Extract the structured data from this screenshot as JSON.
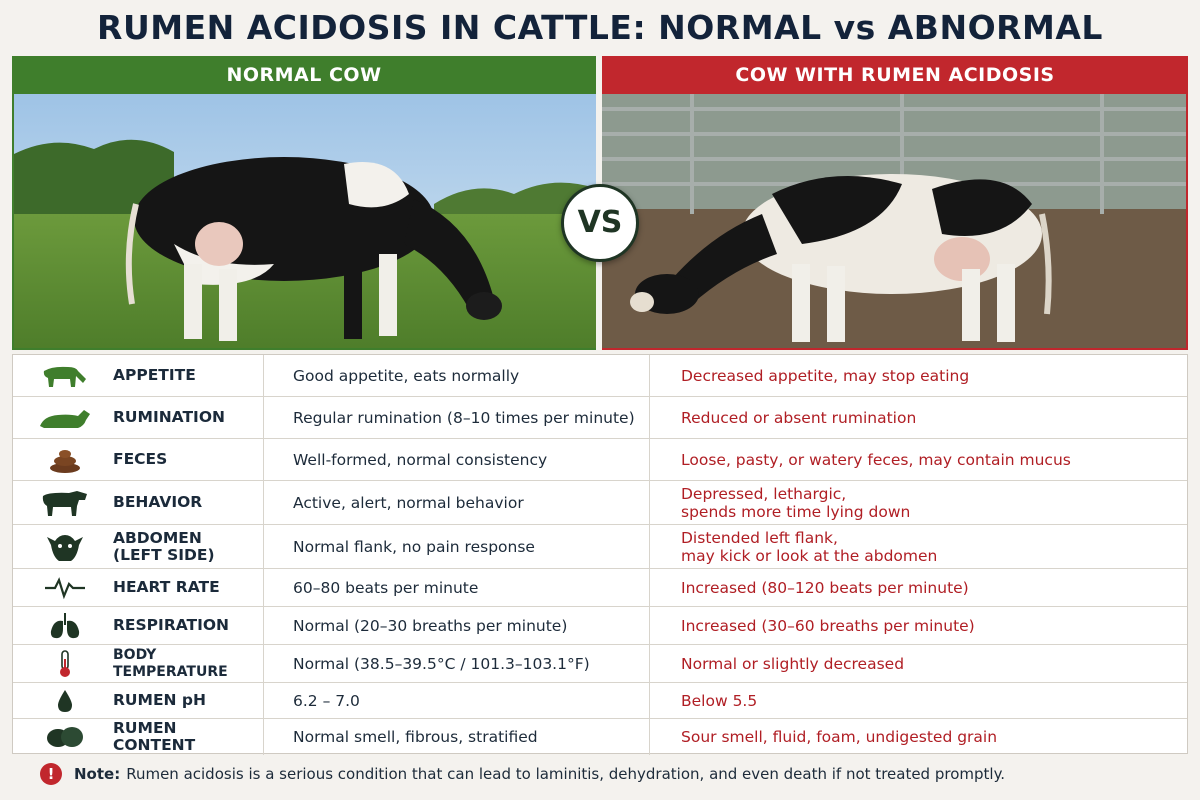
{
  "title": "RUMEN ACIDOSIS IN CATTLE: NORMAL vs ABNORMAL",
  "panels": {
    "normal": {
      "header": "NORMAL COW"
    },
    "acidosis": {
      "header": "COW WITH RUMEN ACIDOSIS"
    },
    "vs_label": "VS"
  },
  "colors": {
    "normal": "#3f7e2c",
    "abnormal": "#c1272d",
    "title": "#13233a"
  },
  "rows": [
    {
      "icon": "cow-grazing-icon",
      "label": "APPETITE",
      "normal": "Good appetite, eats normally",
      "abnormal": [
        "Decreased appetite, may stop eating"
      ]
    },
    {
      "icon": "cow-lying-icon",
      "label": "RUMINATION",
      "normal": "Regular rumination (8–10 times per minute)",
      "abnormal": [
        "Reduced or absent rumination"
      ]
    },
    {
      "icon": "feces-icon",
      "label": "FECES",
      "normal": "Well-formed, normal consistency",
      "abnormal": [
        "Loose, pasty, or watery feces, may contain mucus"
      ]
    },
    {
      "icon": "cow-standing-icon",
      "label": "BEHAVIOR",
      "normal": "Active, alert, normal behavior",
      "abnormal": [
        "Depressed, lethargic,",
        "spends more time lying down"
      ]
    },
    {
      "icon": "cow-head-icon",
      "label": [
        "ABDOMEN",
        "(LEFT SIDE)"
      ],
      "normal": "Normal flank, no pain response",
      "abnormal": [
        "Distended left flank,",
        "may kick or look at the abdomen"
      ]
    },
    {
      "icon": "heartbeat-icon",
      "label": "HEART RATE",
      "normal": "60–80 beats per minute",
      "abnormal": [
        "Increased (80–120 beats per minute)"
      ]
    },
    {
      "icon": "lungs-icon",
      "label": "RESPIRATION",
      "normal": "Normal (20–30 breaths per minute)",
      "abnormal": [
        "Increased (30–60 breaths per minute)"
      ]
    },
    {
      "icon": "thermometer-icon",
      "label": "BODY TEMPERATURE",
      "normal": "Normal (38.5–39.5°C / 101.3–103.1°F)",
      "abnormal": [
        "Normal or slightly decreased"
      ]
    },
    {
      "icon": "drop-icon",
      "label": "RUMEN pH",
      "normal": "6.2 – 7.0",
      "abnormal": [
        "Below 5.5"
      ]
    },
    {
      "icon": "rumen-content-icon",
      "label": "RUMEN CONTENT",
      "normal": "Normal smell, fibrous, stratified",
      "abnormal": [
        "Sour smell, fluid, foam, undigested grain"
      ]
    }
  ],
  "note": {
    "icon": "exclamation-icon",
    "bold": "Note:",
    "text": "Rumen acidosis is a serious condition that can lead to laminitis, dehydration, and even death if not treated promptly."
  }
}
